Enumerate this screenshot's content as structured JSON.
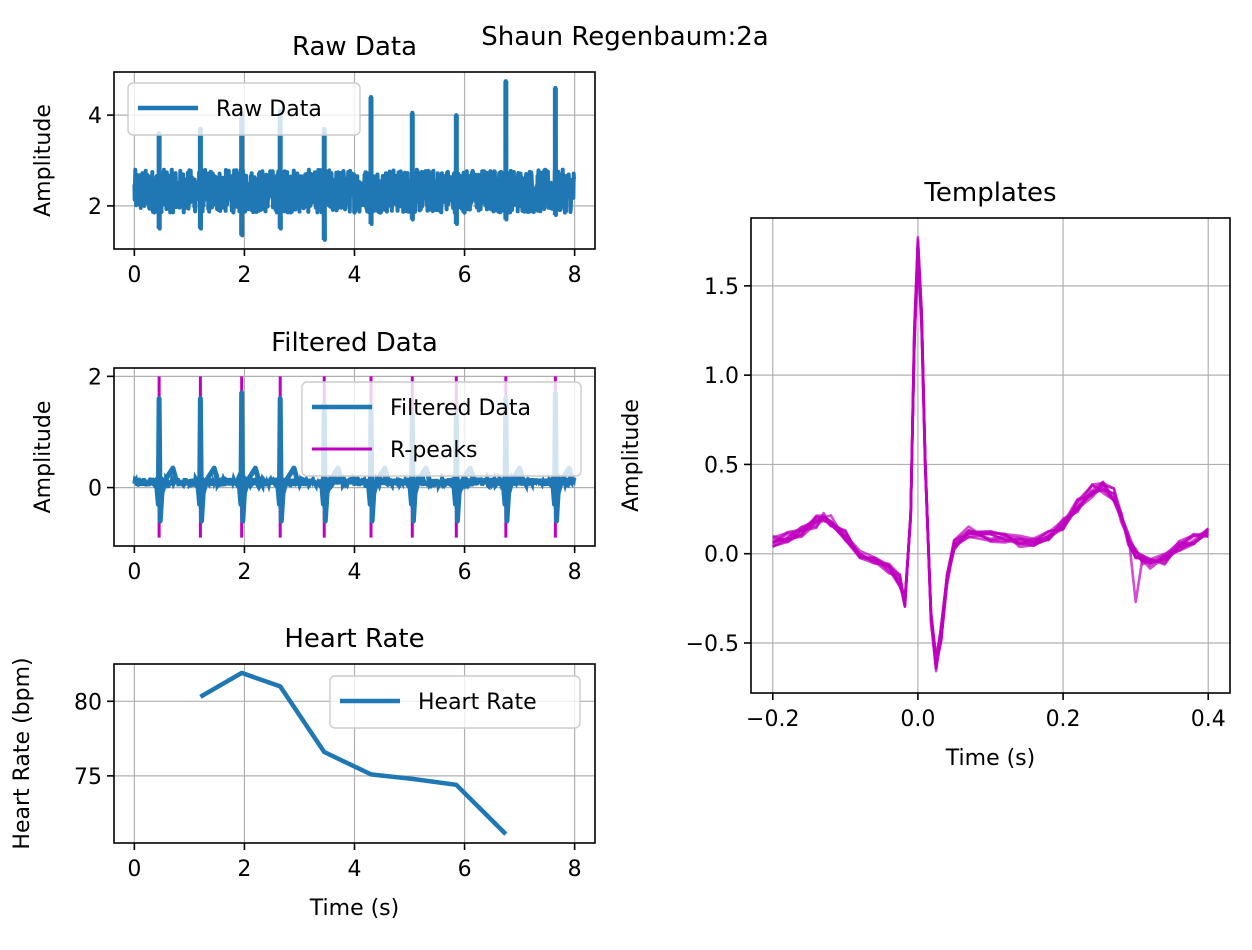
{
  "figure": {
    "suptitle": "Shaun Regenbaum:2a"
  },
  "colors": {
    "signal": "#1f77b4",
    "peaks": "#bf00bf",
    "grid": "#b0b0b0",
    "axes": "#000000"
  },
  "chart_data": [
    {
      "id": "raw",
      "type": "line",
      "title": "Raw Data",
      "xlabel": "",
      "ylabel": "Amplitude",
      "xlim": [
        -0.37,
        8.37
      ],
      "ylim": [
        1.05,
        4.95
      ],
      "xticks": [
        0,
        2,
        4,
        6,
        8
      ],
      "yticks": [
        2,
        4
      ],
      "grid": true,
      "legend": {
        "location": "upper left",
        "entries": [
          {
            "label": "Raw Data",
            "style": "line",
            "color": "#1f77b4"
          }
        ]
      },
      "baseline": 2.45,
      "noise_band": [
        1.85,
        2.8
      ],
      "beats": [
        {
          "t": 0.45,
          "max": 3.6,
          "min": 1.5
        },
        {
          "t": 1.2,
          "max": 3.7,
          "min": 1.5
        },
        {
          "t": 1.95,
          "max": 4.05,
          "min": 1.35
        },
        {
          "t": 2.65,
          "max": 4.1,
          "min": 1.5
        },
        {
          "t": 3.45,
          "max": 3.7,
          "min": 1.25
        },
        {
          "t": 4.3,
          "max": 4.4,
          "min": 1.6
        },
        {
          "t": 5.05,
          "max": 4.05,
          "min": 1.7
        },
        {
          "t": 5.85,
          "max": 4.0,
          "min": 1.6
        },
        {
          "t": 6.75,
          "max": 4.75,
          "min": 1.7
        },
        {
          "t": 7.65,
          "max": 4.6,
          "min": 1.8
        }
      ]
    },
    {
      "id": "filtered",
      "type": "line",
      "title": "Filtered Data",
      "xlabel": "",
      "ylabel": "Amplitude",
      "xlim": [
        -0.37,
        8.37
      ],
      "ylim": [
        -1.05,
        2.15
      ],
      "xticks": [
        0,
        2,
        4,
        6,
        8
      ],
      "yticks": [
        0,
        2
      ],
      "grid": true,
      "legend": {
        "location": "upper right",
        "entries": [
          {
            "label": "Filtered Data",
            "style": "line",
            "color": "#1f77b4"
          },
          {
            "label": "R-peaks",
            "style": "line",
            "color": "#bf00bf"
          }
        ]
      },
      "r_peaks": [
        0.45,
        1.2,
        1.95,
        2.65,
        3.45,
        4.3,
        5.05,
        5.85,
        6.75,
        7.65
      ],
      "r_peak_range": [
        -0.9,
        2.0
      ],
      "peak_heights": [
        1.6,
        1.6,
        1.7,
        1.6,
        1.5,
        1.5,
        1.3,
        1.3,
        1.6,
        1.7
      ]
    },
    {
      "id": "heart_rate",
      "type": "line",
      "title": "Heart Rate",
      "xlabel": "Time (s)",
      "ylabel": "Heart Rate (bpm)",
      "xlim": [
        -0.37,
        8.37
      ],
      "ylim": [
        70.5,
        82.5
      ],
      "xticks": [
        0,
        2,
        4,
        6,
        8
      ],
      "yticks": [
        75,
        80
      ],
      "grid": true,
      "legend": {
        "location": "upper right",
        "entries": [
          {
            "label": "Heart Rate",
            "style": "line",
            "color": "#1f77b4"
          }
        ]
      },
      "series": [
        {
          "name": "Heart Rate",
          "x": [
            1.2,
            1.95,
            2.65,
            3.45,
            4.3,
            5.05,
            5.85,
            6.75
          ],
          "y": [
            80.3,
            81.9,
            81.0,
            76.6,
            75.1,
            74.8,
            74.4,
            71.1
          ]
        }
      ]
    },
    {
      "id": "templates",
      "type": "line",
      "title": "Templates",
      "xlabel": "Time (s)",
      "ylabel": "Amplitude",
      "xlim": [
        -0.23,
        0.43
      ],
      "ylim": [
        -0.78,
        1.88
      ],
      "xticks": [
        -0.2,
        0.0,
        0.2,
        0.4
      ],
      "xtick_labels": [
        "−0.2",
        "0.0",
        "0.2",
        "0.4"
      ],
      "yticks": [
        -0.5,
        0.0,
        0.5,
        1.0,
        1.5
      ],
      "ytick_labels": [
        "−0.5",
        "0.0",
        "0.5",
        "1.0",
        "1.5"
      ],
      "grid": true,
      "template": {
        "x": [
          -0.2,
          -0.18,
          -0.16,
          -0.14,
          -0.13,
          -0.12,
          -0.1,
          -0.08,
          -0.06,
          -0.04,
          -0.025,
          -0.018,
          -0.01,
          -0.005,
          0.0,
          0.005,
          0.01,
          0.018,
          0.025,
          0.032,
          0.04,
          0.05,
          0.07,
          0.1,
          0.12,
          0.14,
          0.16,
          0.18,
          0.2,
          0.22,
          0.24,
          0.255,
          0.27,
          0.28,
          0.29,
          0.3,
          0.31,
          0.32,
          0.34,
          0.36,
          0.38,
          0.4
        ],
        "y": [
          0.07,
          0.09,
          0.12,
          0.18,
          0.2,
          0.18,
          0.1,
          0.0,
          -0.05,
          -0.08,
          -0.15,
          -0.28,
          0.2,
          1.2,
          1.7,
          1.3,
          0.5,
          -0.35,
          -0.62,
          -0.45,
          -0.15,
          0.05,
          0.12,
          0.1,
          0.08,
          0.07,
          0.06,
          0.1,
          0.17,
          0.27,
          0.35,
          0.37,
          0.33,
          0.2,
          0.08,
          0.0,
          -0.04,
          -0.06,
          -0.03,
          0.04,
          0.08,
          0.11
        ]
      },
      "template_count": 10
    }
  ]
}
